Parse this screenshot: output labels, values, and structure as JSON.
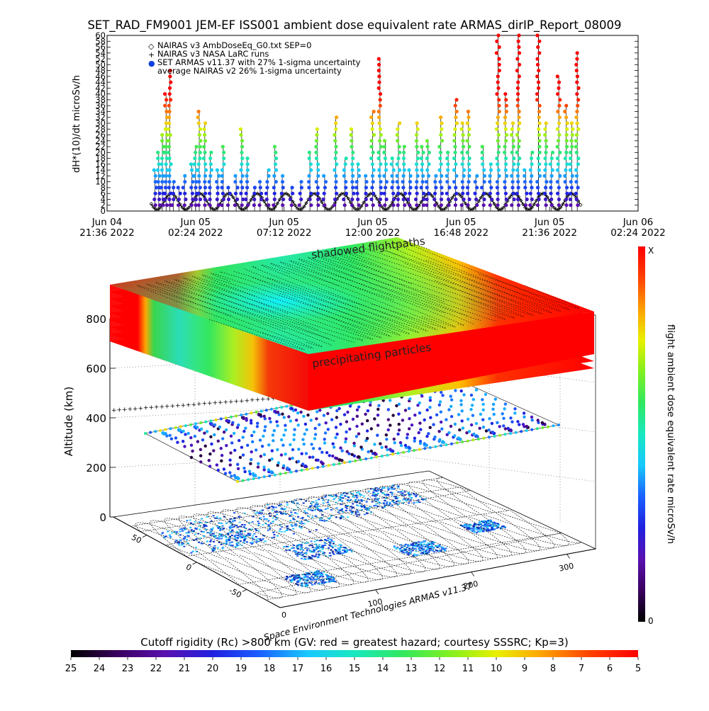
{
  "title": "SET_RAD_FM9001   JEM-EF ISS001 ambient dose equivalent rate ARMAS_dirIP_Report_08009",
  "chart_data": [
    {
      "type": "scatter",
      "ylabel": "dH*(10)/dt microSv/h",
      "ylim": [
        0,
        60
      ],
      "yticks": [
        "0",
        "2",
        "4",
        "6",
        "8",
        "10",
        "12",
        "14",
        "16",
        "18",
        "20",
        "22",
        "24",
        "26",
        "28",
        "30",
        "32",
        "34",
        "36",
        "38",
        "40",
        "42",
        "44",
        "46",
        "48",
        "50",
        "52",
        "54",
        "56",
        "58",
        "60"
      ],
      "xticks": [
        {
          "day": "Jun 04",
          "time": "21:36 2022"
        },
        {
          "day": "Jun 05",
          "time": "02:24 2022"
        },
        {
          "day": "Jun 05",
          "time": "07:12 2022"
        },
        {
          "day": "Jun 05",
          "time": "12:00 2022"
        },
        {
          "day": "Jun 05",
          "time": "16:48 2022"
        },
        {
          "day": "Jun 05",
          "time": "21:36 2022"
        },
        {
          "day": "Jun 06",
          "time": "02:24 2022"
        }
      ],
      "xlim_hours": [
        0,
        28.8
      ],
      "data_hours_range": [
        2.4,
        25.7
      ],
      "legend": [
        {
          "symbol": "◇",
          "text": "NAIRAS v3 AmbDoseEq_G0.txt SEP=0"
        },
        {
          "symbol": "+",
          "text": "NAIRAS v3 NASA LaRC runs"
        },
        {
          "symbol": "●",
          "text": "SET ARMAS v11.37 with 27% 1-sigma uncertainty",
          "color": "#1040e0"
        },
        {
          "symbol": "",
          "text": "average NAIRAS v2 26% 1-sigma uncertainty"
        }
      ],
      "legend_position": "top-left",
      "baseline_model": {
        "min": 0.5,
        "max": 6,
        "orbit_period_hours": 1.55
      },
      "series": [
        {
          "name": "SET ARMAS v11.37 with 27% 1-sigma uncertainty",
          "points": [
            [
              2.6,
              14
            ],
            [
              2.8,
              20
            ],
            [
              3.0,
              26
            ],
            [
              3.2,
              40
            ],
            [
              3.4,
              48
            ],
            [
              3.6,
              10
            ],
            [
              3.9,
              8
            ],
            [
              4.2,
              12
            ],
            [
              4.6,
              16
            ],
            [
              4.8,
              22
            ],
            [
              5.0,
              34
            ],
            [
              5.3,
              30
            ],
            [
              5.6,
              20
            ],
            [
              6.0,
              14
            ],
            [
              6.3,
              22
            ],
            [
              6.6,
              8
            ],
            [
              7.0,
              12
            ],
            [
              7.3,
              28
            ],
            [
              7.6,
              18
            ],
            [
              8.0,
              8
            ],
            [
              8.3,
              10
            ],
            [
              8.7,
              14
            ],
            [
              9.1,
              22
            ],
            [
              9.5,
              12
            ],
            [
              10.0,
              8
            ],
            [
              10.5,
              10
            ],
            [
              11.0,
              20
            ],
            [
              11.4,
              28
            ],
            [
              11.8,
              12
            ],
            [
              12.4,
              32
            ],
            [
              12.9,
              18
            ],
            [
              13.3,
              28
            ],
            [
              13.6,
              16
            ],
            [
              14.0,
              12
            ],
            [
              14.4,
              34
            ],
            [
              14.8,
              52
            ],
            [
              15.1,
              24
            ],
            [
              15.5,
              18
            ],
            [
              15.8,
              30
            ],
            [
              16.1,
              22
            ],
            [
              16.4,
              14
            ],
            [
              16.8,
              30
            ],
            [
              17.1,
              22
            ],
            [
              17.4,
              24
            ],
            [
              17.8,
              12
            ],
            [
              18.1,
              32
            ],
            [
              18.5,
              20
            ],
            [
              18.9,
              38
            ],
            [
              19.3,
              30
            ],
            [
              19.6,
              34
            ],
            [
              20.0,
              12
            ],
            [
              20.4,
              22
            ],
            [
              20.8,
              16
            ],
            [
              21.2,
              60
            ],
            [
              21.6,
              40
            ],
            [
              22.0,
              30
            ],
            [
              22.3,
              60
            ],
            [
              22.7,
              14
            ],
            [
              23.0,
              20
            ],
            [
              23.4,
              60
            ],
            [
              23.8,
              30
            ],
            [
              24.1,
              20
            ],
            [
              24.5,
              46
            ],
            [
              24.9,
              36
            ],
            [
              25.2,
              30
            ],
            [
              25.5,
              54
            ]
          ]
        }
      ]
    },
    {
      "type": "surface3d",
      "zlabel": "Altitude (km)",
      "zticks": [
        "0",
        "200",
        "400",
        "600",
        "800"
      ],
      "lon_ticks": [
        "100",
        "200",
        "300"
      ],
      "lat_ticks": [
        "50",
        "0",
        "-50"
      ],
      "annotations": [
        "shadowed flightpaths",
        "precipitating particles"
      ],
      "credit": "Space Environment Technologies ARMAS v11.37"
    }
  ],
  "colorbar_right": {
    "label": "flight ambient dose equivalent rate microSv/h",
    "top_label": "X",
    "bottom_label": "0"
  },
  "colorbar_bottom": {
    "label": "Cutoff rigidity (Rc) >800 km (GV: red = greatest hazard; courtesy SSSRC; Kp=3)",
    "ticks": [
      "25",
      "24",
      "23",
      "22",
      "21",
      "20",
      "19",
      "18",
      "17",
      "16",
      "15",
      "14",
      "13",
      "12",
      "11",
      "10",
      "9",
      "8",
      "7",
      "6",
      "5"
    ]
  },
  "colors": {
    "rainbow": [
      "#000000",
      "#3a0060",
      "#5a10b0",
      "#2020e0",
      "#1a60ff",
      "#18c8ff",
      "#18e8c0",
      "#30e860",
      "#80f020",
      "#e8f000",
      "#ffa000",
      "#ff4000",
      "#ff0000"
    ]
  }
}
